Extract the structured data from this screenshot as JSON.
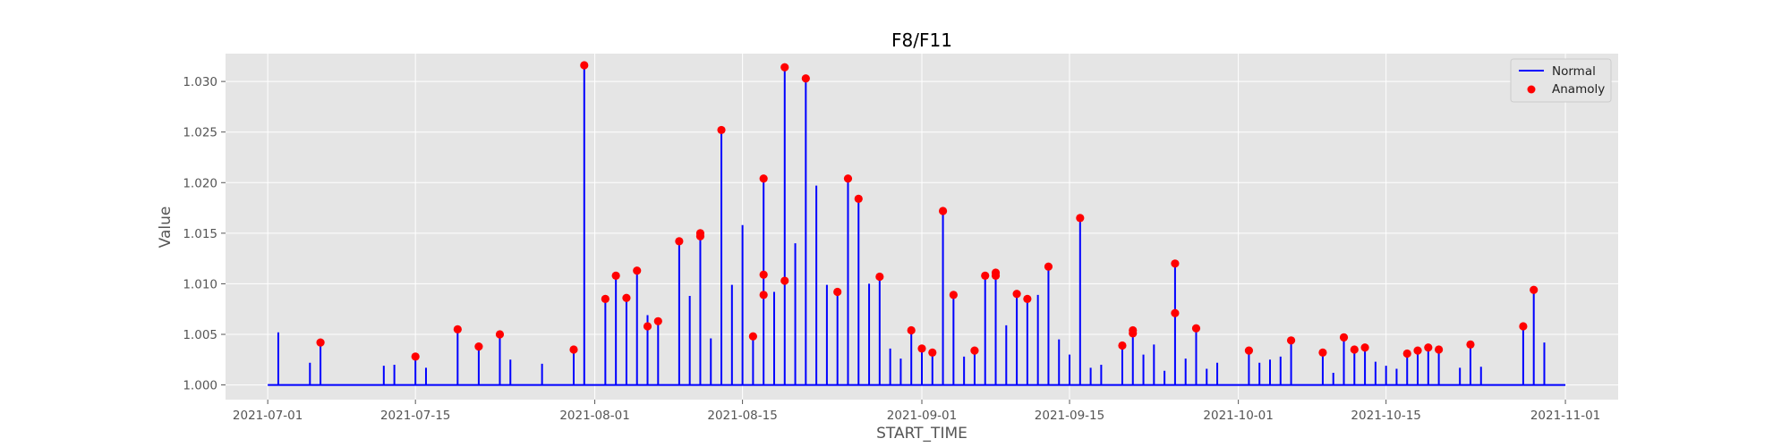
{
  "chart_data": {
    "type": "line",
    "title": "F8/F11",
    "xlabel": "START_TIME",
    "ylabel": "Value",
    "x_type": "date",
    "xlim": [
      "2021-06-27",
      "2021-11-06"
    ],
    "ylim": [
      0.99855,
      1.03275
    ],
    "baseline": 1.0,
    "grid": true,
    "legend_position": "top-right",
    "plot_background": "#e5e5e5",
    "x_ticks": [
      "2021-07-01",
      "2021-07-15",
      "2021-08-01",
      "2021-08-15",
      "2021-09-01",
      "2021-09-15",
      "2021-10-01",
      "2021-10-15",
      "2021-11-01"
    ],
    "y_ticks": [
      1.0,
      1.005,
      1.01,
      1.015,
      1.02,
      1.025,
      1.03
    ],
    "y_tick_labels": [
      "1.000",
      "1.005",
      "1.010",
      "1.015",
      "1.020",
      "1.025",
      "1.030"
    ],
    "series": [
      {
        "name": "Normal",
        "style": "line",
        "color": "#0000ff",
        "spikes": [
          [
            "2021-07-02",
            1.0052
          ],
          [
            "2021-07-05",
            1.0022
          ],
          [
            "2021-07-06",
            1.0042
          ],
          [
            "2021-07-12",
            1.0019
          ],
          [
            "2021-07-13",
            1.002
          ],
          [
            "2021-07-15",
            1.0028
          ],
          [
            "2021-07-16",
            1.0017
          ],
          [
            "2021-07-19",
            1.0055
          ],
          [
            "2021-07-21",
            1.0038
          ],
          [
            "2021-07-23",
            1.005
          ],
          [
            "2021-07-24",
            1.0025
          ],
          [
            "2021-07-27",
            1.0021
          ],
          [
            "2021-07-30",
            1.0035
          ],
          [
            "2021-07-31",
            1.0316
          ],
          [
            "2021-08-02",
            1.0071
          ],
          [
            "2021-08-02",
            1.0085
          ],
          [
            "2021-08-03",
            1.0108
          ],
          [
            "2021-08-03",
            1.005
          ],
          [
            "2021-08-04",
            1.0086
          ],
          [
            "2021-08-05",
            1.0113
          ],
          [
            "2021-08-05",
            1.0032
          ],
          [
            "2021-08-06",
            1.0069
          ],
          [
            "2021-08-06",
            1.0058
          ],
          [
            "2021-08-07",
            1.006
          ],
          [
            "2021-08-07",
            1.0063
          ],
          [
            "2021-08-09",
            1.0142
          ],
          [
            "2021-08-09",
            1.007
          ],
          [
            "2021-08-09",
            1.0064
          ],
          [
            "2021-08-10",
            1.0081
          ],
          [
            "2021-08-10",
            1.0088
          ],
          [
            "2021-08-11",
            1.015
          ],
          [
            "2021-08-11",
            1.0147
          ],
          [
            "2021-08-12",
            1.0046
          ],
          [
            "2021-08-13",
            1.0252
          ],
          [
            "2021-08-14",
            1.0079
          ],
          [
            "2021-08-14",
            1.0099
          ],
          [
            "2021-08-15",
            1.0158
          ],
          [
            "2021-08-16",
            1.0048
          ],
          [
            "2021-08-17",
            1.0089
          ],
          [
            "2021-08-17",
            1.0109
          ],
          [
            "2021-08-17",
            1.0204
          ],
          [
            "2021-08-18",
            1.0092
          ],
          [
            "2021-08-19",
            1.0103
          ],
          [
            "2021-08-19",
            1.0314
          ],
          [
            "2021-08-19",
            1.0078
          ],
          [
            "2021-08-20",
            1.012
          ],
          [
            "2021-08-20",
            1.0082
          ],
          [
            "2021-08-20",
            1.014
          ],
          [
            "2021-08-21",
            1.0152
          ],
          [
            "2021-08-21",
            1.0303
          ],
          [
            "2021-08-22",
            1.0197
          ],
          [
            "2021-08-23",
            1.0099
          ],
          [
            "2021-08-24",
            1.0092
          ],
          [
            "2021-08-25",
            1.0204
          ],
          [
            "2021-08-26",
            1.0069
          ],
          [
            "2021-08-26",
            1.0184
          ],
          [
            "2021-08-27",
            1.01
          ],
          [
            "2021-08-28",
            1.0078
          ],
          [
            "2021-08-28",
            1.0107
          ],
          [
            "2021-08-29",
            1.0036
          ],
          [
            "2021-08-30",
            1.0026
          ],
          [
            "2021-08-31",
            1.0054
          ],
          [
            "2021-09-01",
            1.0036
          ],
          [
            "2021-09-02",
            1.0032
          ],
          [
            "2021-09-03",
            1.0172
          ],
          [
            "2021-09-03",
            1.0092
          ],
          [
            "2021-09-04",
            1.0089
          ],
          [
            "2021-09-05",
            1.0028
          ],
          [
            "2021-09-06",
            1.0034
          ],
          [
            "2021-09-07",
            1.0108
          ],
          [
            "2021-09-08",
            1.0111
          ],
          [
            "2021-09-08",
            1.0108
          ],
          [
            "2021-09-09",
            1.0059
          ],
          [
            "2021-09-10",
            1.0063
          ],
          [
            "2021-09-10",
            1.009
          ],
          [
            "2021-09-11",
            1.0085
          ],
          [
            "2021-09-11",
            1.007
          ],
          [
            "2021-09-12",
            1.0089
          ],
          [
            "2021-09-12",
            1.0053
          ],
          [
            "2021-09-13",
            1.0117
          ],
          [
            "2021-09-14",
            1.0045
          ],
          [
            "2021-09-15",
            1.0026
          ],
          [
            "2021-09-15",
            1.003
          ],
          [
            "2021-09-16",
            1.0165
          ],
          [
            "2021-09-16",
            1.0017
          ],
          [
            "2021-09-17",
            1.0017
          ],
          [
            "2021-09-18",
            1.002
          ],
          [
            "2021-09-18",
            1.0016
          ],
          [
            "2021-09-20",
            1.0039
          ],
          [
            "2021-09-21",
            1.0054
          ],
          [
            "2021-09-21",
            1.0051
          ],
          [
            "2021-09-22",
            1.003
          ],
          [
            "2021-09-22",
            1.002
          ],
          [
            "2021-09-23",
            1.004
          ],
          [
            "2021-09-23",
            1.002
          ],
          [
            "2021-09-24",
            1.0014
          ],
          [
            "2021-09-25",
            1.0071
          ],
          [
            "2021-09-25",
            1.012
          ],
          [
            "2021-09-25",
            1.0031
          ],
          [
            "2021-09-26",
            1.0026
          ],
          [
            "2021-09-27",
            1.0056
          ],
          [
            "2021-09-28",
            1.0016
          ],
          [
            "2021-09-29",
            1.0022
          ],
          [
            "2021-10-02",
            1.0034
          ],
          [
            "2021-10-03",
            1.0022
          ],
          [
            "2021-10-04",
            1.0025
          ],
          [
            "2021-10-05",
            1.0028
          ],
          [
            "2021-10-05",
            1.0019
          ],
          [
            "2021-10-06",
            1.0044
          ],
          [
            "2021-10-06",
            1.0021
          ],
          [
            "2021-10-09",
            1.0032
          ],
          [
            "2021-10-10",
            1.0012
          ],
          [
            "2021-10-11",
            1.0047
          ],
          [
            "2021-10-12",
            1.0035
          ],
          [
            "2021-10-12",
            1.0022
          ],
          [
            "2021-10-13",
            1.0037
          ],
          [
            "2021-10-13",
            1.0018
          ],
          [
            "2021-10-14",
            1.0023
          ],
          [
            "2021-10-15",
            1.0019
          ],
          [
            "2021-10-16",
            1.0016
          ],
          [
            "2021-10-17",
            1.0031
          ],
          [
            "2021-10-18",
            1.0034
          ],
          [
            "2021-10-19",
            1.0037
          ],
          [
            "2021-10-20",
            1.0017
          ],
          [
            "2021-10-20",
            1.0035
          ],
          [
            "2021-10-22",
            1.0017
          ],
          [
            "2021-10-23",
            1.004
          ],
          [
            "2021-10-24",
            1.0018
          ],
          [
            "2021-10-28",
            1.0058
          ],
          [
            "2021-10-29",
            1.0094
          ],
          [
            "2021-10-30",
            1.0042
          ],
          [
            "2021-10-30",
            1.0036
          ]
        ]
      },
      {
        "name": "Anamoly",
        "style": "scatter",
        "color": "#ff0000",
        "points": [
          [
            "2021-07-06",
            1.0042
          ],
          [
            "2021-07-15",
            1.0028
          ],
          [
            "2021-07-19",
            1.0055
          ],
          [
            "2021-07-21",
            1.0038
          ],
          [
            "2021-07-23",
            1.005
          ],
          [
            "2021-07-30",
            1.0035
          ],
          [
            "2021-07-31",
            1.0316
          ],
          [
            "2021-08-02",
            1.0085
          ],
          [
            "2021-08-03",
            1.0108
          ],
          [
            "2021-08-04",
            1.0086
          ],
          [
            "2021-08-05",
            1.0113
          ],
          [
            "2021-08-06",
            1.0058
          ],
          [
            "2021-08-07",
            1.0063
          ],
          [
            "2021-08-09",
            1.0142
          ],
          [
            "2021-08-11",
            1.015
          ],
          [
            "2021-08-11",
            1.0147
          ],
          [
            "2021-08-13",
            1.0252
          ],
          [
            "2021-08-16",
            1.0048
          ],
          [
            "2021-08-17",
            1.0089
          ],
          [
            "2021-08-17",
            1.0109
          ],
          [
            "2021-08-17",
            1.0204
          ],
          [
            "2021-08-19",
            1.0103
          ],
          [
            "2021-08-19",
            1.0314
          ],
          [
            "2021-08-21",
            1.0303
          ],
          [
            "2021-08-24",
            1.0092
          ],
          [
            "2021-08-25",
            1.0204
          ],
          [
            "2021-08-26",
            1.0184
          ],
          [
            "2021-08-28",
            1.0107
          ],
          [
            "2021-08-31",
            1.0054
          ],
          [
            "2021-09-01",
            1.0036
          ],
          [
            "2021-09-02",
            1.0032
          ],
          [
            "2021-09-03",
            1.0172
          ],
          [
            "2021-09-04",
            1.0089
          ],
          [
            "2021-09-06",
            1.0034
          ],
          [
            "2021-09-07",
            1.0108
          ],
          [
            "2021-09-08",
            1.0111
          ],
          [
            "2021-09-08",
            1.0108
          ],
          [
            "2021-09-10",
            1.009
          ],
          [
            "2021-09-11",
            1.0085
          ],
          [
            "2021-09-13",
            1.0117
          ],
          [
            "2021-09-16",
            1.0165
          ],
          [
            "2021-09-20",
            1.0039
          ],
          [
            "2021-09-21",
            1.0054
          ],
          [
            "2021-09-21",
            1.0051
          ],
          [
            "2021-09-25",
            1.0071
          ],
          [
            "2021-09-25",
            1.012
          ],
          [
            "2021-09-27",
            1.0056
          ],
          [
            "2021-10-02",
            1.0034
          ],
          [
            "2021-10-06",
            1.0044
          ],
          [
            "2021-10-09",
            1.0032
          ],
          [
            "2021-10-11",
            1.0047
          ],
          [
            "2021-10-12",
            1.0035
          ],
          [
            "2021-10-13",
            1.0037
          ],
          [
            "2021-10-17",
            1.0031
          ],
          [
            "2021-10-18",
            1.0034
          ],
          [
            "2021-10-19",
            1.0037
          ],
          [
            "2021-10-20",
            1.0035
          ],
          [
            "2021-10-23",
            1.004
          ],
          [
            "2021-10-28",
            1.0058
          ],
          [
            "2021-10-29",
            1.0094
          ]
        ]
      }
    ]
  }
}
